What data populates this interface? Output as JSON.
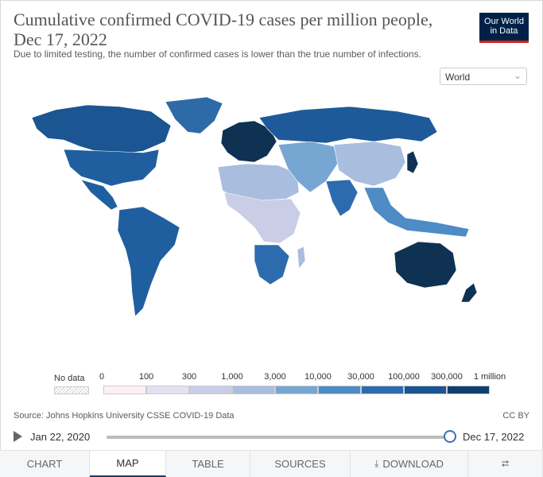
{
  "header": {
    "title": "Cumulative confirmed COVID-19 cases per million people, Dec 17, 2022",
    "subtitle": "Due to limited testing, the number of confirmed cases is lower than the true number of infections.",
    "logo_line1": "Our World",
    "logo_line2": "in Data"
  },
  "region_select": {
    "value": "World",
    "icon": "chevron-down-icon"
  },
  "legend": {
    "nodata_label": "No data",
    "bins": [
      {
        "label": "0",
        "color": "#fdf0f5"
      },
      {
        "label": "100",
        "color": "#e3e1f1"
      },
      {
        "label": "300",
        "color": "#c9cde6"
      },
      {
        "label": "1,000",
        "color": "#a9bddf"
      },
      {
        "label": "3,000",
        "color": "#78a6d3"
      },
      {
        "label": "10,000",
        "color": "#4f8bc5"
      },
      {
        "label": "30,000",
        "color": "#2c6cae"
      },
      {
        "label": "100,000",
        "color": "#1b5592"
      },
      {
        "label": "300,000",
        "color": "#0f3f71"
      },
      {
        "label": "1 million",
        "color": ""
      }
    ]
  },
  "colors": {
    "americas": "#1f5fa0",
    "canada": "#1b5592",
    "greenland": "#2e6aa8",
    "russia": "#1e5a99",
    "europe": "#0f3252",
    "africa_light": "#c9cde6",
    "africa_mid": "#a9bddf",
    "africa_south": "#2c6cae",
    "asia_mid": "#78a6d3",
    "china": "#a9bddf",
    "india": "#2c6cae",
    "australia": "#0f3252",
    "se_asia": "#4f8bc5",
    "japan": "#0f3252"
  },
  "footer": {
    "source": "Source: Johns Hopkins University CSSE COVID-19 Data",
    "license": "CC BY"
  },
  "timeline": {
    "start_label": "Jan 22, 2020",
    "end_label": "Dec 17, 2022",
    "progress": 1.0
  },
  "tabs": [
    {
      "label": "CHART",
      "active": false
    },
    {
      "label": "MAP",
      "active": true
    },
    {
      "label": "TABLE",
      "active": false
    },
    {
      "label": "SOURCES",
      "active": false
    },
    {
      "label": "DOWNLOAD",
      "active": false,
      "icon": "download-icon"
    },
    {
      "label": "",
      "active": false,
      "icon": "share-icon"
    }
  ]
}
